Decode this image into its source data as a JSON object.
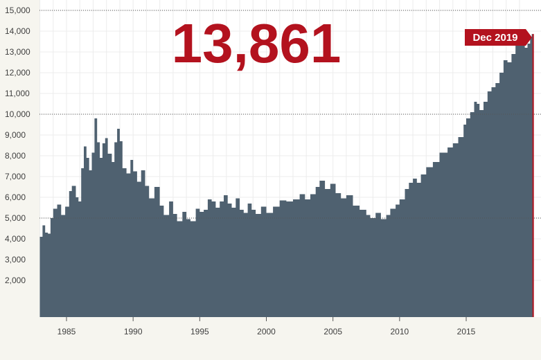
{
  "headline_value": "13,861",
  "end_label": "Dec 2019",
  "colors": {
    "background": "#f6f5ef",
    "plot_background": "#ffffff",
    "area_fill": "#4f6170",
    "accent": "#b3121e",
    "axis_text": "#3f3f3f"
  },
  "chart_data": {
    "type": "area",
    "title": "",
    "xlabel": "",
    "ylabel": "",
    "xlim": [
      1982.8,
      2020.1
    ],
    "ylim": [
      0,
      15000
    ],
    "x_ticks": [
      1985,
      1990,
      1995,
      2000,
      2005,
      2010,
      2015
    ],
    "x_tick_labels": [
      "1985",
      "1990",
      "1995",
      "2000",
      "2005",
      "2010",
      "2015"
    ],
    "y_ticks": [
      2000,
      3000,
      4000,
      5000,
      6000,
      7000,
      8000,
      9000,
      10000,
      11000,
      12000,
      13000,
      14000,
      15000
    ],
    "y_tick_labels": [
      "2,000",
      "3,000",
      "4,000",
      "5,000",
      "6,000",
      "7,000",
      "8,000",
      "9,000",
      "10,000",
      "11,000",
      "12,000",
      "13,000",
      "14,000",
      "15,000"
    ],
    "reference_lines": [
      5000,
      10000,
      15000
    ],
    "grid": true,
    "series": [
      {
        "points": [
          [
            1983.0,
            4100
          ],
          [
            1983.2,
            4650
          ],
          [
            1983.4,
            4300
          ],
          [
            1983.6,
            4250
          ],
          [
            1983.8,
            5000
          ],
          [
            1984.0,
            5450
          ],
          [
            1984.3,
            5650
          ],
          [
            1984.6,
            5150
          ],
          [
            1984.9,
            5550
          ],
          [
            1985.2,
            6300
          ],
          [
            1985.4,
            6550
          ],
          [
            1985.7,
            6000
          ],
          [
            1985.9,
            5800
          ],
          [
            1986.1,
            7400
          ],
          [
            1986.3,
            8450
          ],
          [
            1986.5,
            7900
          ],
          [
            1986.7,
            7300
          ],
          [
            1986.9,
            8150
          ],
          [
            1987.1,
            9800
          ],
          [
            1987.3,
            8650
          ],
          [
            1987.5,
            7900
          ],
          [
            1987.7,
            8600
          ],
          [
            1987.9,
            8850
          ],
          [
            1988.1,
            8100
          ],
          [
            1988.4,
            7700
          ],
          [
            1988.6,
            8650
          ],
          [
            1988.8,
            9300
          ],
          [
            1989.0,
            8700
          ],
          [
            1989.2,
            7400
          ],
          [
            1989.5,
            7150
          ],
          [
            1989.8,
            7800
          ],
          [
            1990.0,
            7250
          ],
          [
            1990.3,
            6750
          ],
          [
            1990.6,
            7300
          ],
          [
            1990.9,
            6550
          ],
          [
            1991.2,
            5950
          ],
          [
            1991.6,
            6500
          ],
          [
            1992.0,
            5600
          ],
          [
            1992.3,
            5150
          ],
          [
            1992.7,
            5800
          ],
          [
            1993.0,
            5200
          ],
          [
            1993.3,
            4850
          ],
          [
            1993.7,
            5300
          ],
          [
            1994.0,
            4950
          ],
          [
            1994.3,
            4850
          ],
          [
            1994.7,
            5450
          ],
          [
            1995.0,
            5300
          ],
          [
            1995.3,
            5400
          ],
          [
            1995.6,
            5900
          ],
          [
            1995.9,
            5800
          ],
          [
            1996.2,
            5500
          ],
          [
            1996.5,
            5800
          ],
          [
            1996.8,
            6100
          ],
          [
            1997.1,
            5700
          ],
          [
            1997.4,
            5500
          ],
          [
            1997.7,
            5950
          ],
          [
            1998.0,
            5400
          ],
          [
            1998.3,
            5250
          ],
          [
            1998.6,
            5700
          ],
          [
            1998.9,
            5400
          ],
          [
            1999.2,
            5200
          ],
          [
            1999.6,
            5550
          ],
          [
            2000.0,
            5250
          ],
          [
            2000.5,
            5550
          ],
          [
            2001.0,
            5850
          ],
          [
            2001.5,
            5800
          ],
          [
            2002.0,
            5900
          ],
          [
            2002.5,
            6150
          ],
          [
            2002.9,
            5900
          ],
          [
            2003.3,
            6150
          ],
          [
            2003.7,
            6500
          ],
          [
            2004.0,
            6800
          ],
          [
            2004.4,
            6400
          ],
          [
            2004.8,
            6650
          ],
          [
            2005.2,
            6200
          ],
          [
            2005.6,
            5950
          ],
          [
            2006.0,
            6100
          ],
          [
            2006.5,
            5600
          ],
          [
            2007.0,
            5400
          ],
          [
            2007.5,
            5150
          ],
          [
            2007.8,
            5000
          ],
          [
            2008.2,
            5250
          ],
          [
            2008.6,
            4950
          ],
          [
            2009.0,
            5150
          ],
          [
            2009.3,
            5450
          ],
          [
            2009.7,
            5650
          ],
          [
            2010.0,
            5900
          ],
          [
            2010.4,
            6400
          ],
          [
            2010.7,
            6700
          ],
          [
            2011.0,
            6900
          ],
          [
            2011.3,
            6700
          ],
          [
            2011.6,
            7100
          ],
          [
            2012.0,
            7450
          ],
          [
            2012.5,
            7700
          ],
          [
            2013.0,
            8150
          ],
          [
            2013.6,
            8400
          ],
          [
            2014.0,
            8600
          ],
          [
            2014.4,
            8900
          ],
          [
            2014.8,
            9500
          ],
          [
            2015.0,
            9800
          ],
          [
            2015.3,
            10100
          ],
          [
            2015.6,
            10600
          ],
          [
            2015.8,
            10500
          ],
          [
            2016.0,
            10200
          ],
          [
            2016.3,
            10600
          ],
          [
            2016.6,
            11100
          ],
          [
            2016.9,
            11300
          ],
          [
            2017.2,
            11500
          ],
          [
            2017.5,
            12000
          ],
          [
            2017.8,
            12600
          ],
          [
            2018.1,
            12500
          ],
          [
            2018.4,
            12900
          ],
          [
            2018.7,
            13300
          ],
          [
            2019.0,
            13600
          ],
          [
            2019.2,
            13300
          ],
          [
            2019.4,
            13200
          ],
          [
            2019.6,
            13400
          ],
          [
            2019.8,
            13700
          ],
          [
            2019.92,
            13861
          ]
        ]
      }
    ]
  }
}
